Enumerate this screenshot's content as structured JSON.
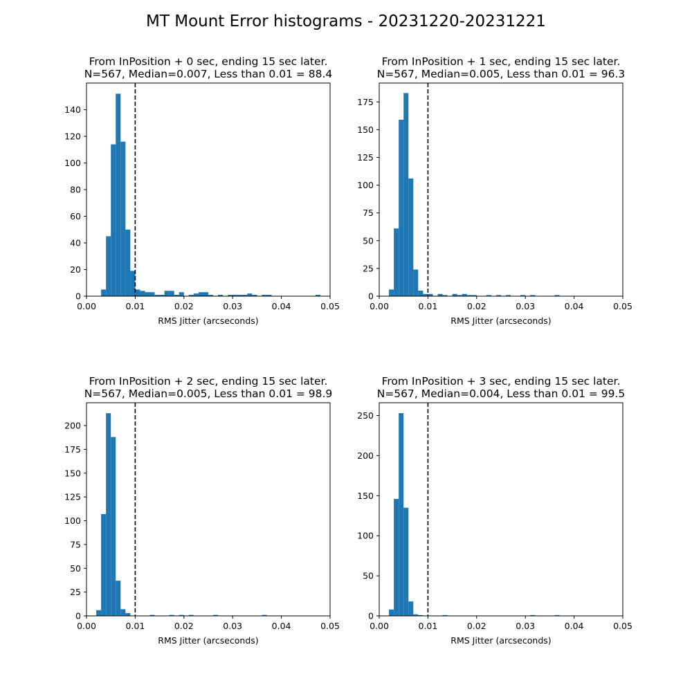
{
  "figure": {
    "suptitle": "MT Mount Error histograms - 20231220-20231221",
    "bar_color": "#1f77b4",
    "threshold_line_color": "#000000"
  },
  "chart_data": [
    {
      "type": "bar",
      "title_line1": "From InPosition + 0 sec, ending 15 sec later.",
      "title_line2": "N=567, Median=0.007, Less than 0.01 = 88.4",
      "xlabel": "RMS Jitter (arcseconds)",
      "ylabel": "",
      "xlim": [
        0.0,
        0.05
      ],
      "ylim": [
        0,
        160
      ],
      "xticks": [
        "0.00",
        "0.01",
        "0.02",
        "0.03",
        "0.04",
        "0.05"
      ],
      "yticks": [
        "0",
        "20",
        "40",
        "60",
        "80",
        "100",
        "120",
        "140"
      ],
      "threshold": 0.01,
      "bin_width": 0.001,
      "bins": [
        {
          "x": 0.003,
          "y": 5
        },
        {
          "x": 0.004,
          "y": 45
        },
        {
          "x": 0.005,
          "y": 114
        },
        {
          "x": 0.006,
          "y": 152
        },
        {
          "x": 0.007,
          "y": 116
        },
        {
          "x": 0.008,
          "y": 50
        },
        {
          "x": 0.009,
          "y": 19
        },
        {
          "x": 0.01,
          "y": 5
        },
        {
          "x": 0.011,
          "y": 4
        },
        {
          "x": 0.012,
          "y": 3
        },
        {
          "x": 0.013,
          "y": 3
        },
        {
          "x": 0.014,
          "y": 1
        },
        {
          "x": 0.015,
          "y": 1
        },
        {
          "x": 0.016,
          "y": 4
        },
        {
          "x": 0.017,
          "y": 4
        },
        {
          "x": 0.018,
          "y": 1
        },
        {
          "x": 0.019,
          "y": 3
        },
        {
          "x": 0.021,
          "y": 1
        },
        {
          "x": 0.022,
          "y": 2
        },
        {
          "x": 0.023,
          "y": 3
        },
        {
          "x": 0.024,
          "y": 3
        },
        {
          "x": 0.025,
          "y": 1
        },
        {
          "x": 0.027,
          "y": 1
        },
        {
          "x": 0.029,
          "y": 1
        },
        {
          "x": 0.03,
          "y": 1
        },
        {
          "x": 0.031,
          "y": 1
        },
        {
          "x": 0.032,
          "y": 1
        },
        {
          "x": 0.033,
          "y": 2
        },
        {
          "x": 0.034,
          "y": 1
        },
        {
          "x": 0.036,
          "y": 1
        },
        {
          "x": 0.037,
          "y": 1
        },
        {
          "x": 0.047,
          "y": 1
        }
      ]
    },
    {
      "type": "bar",
      "title_line1": "From InPosition + 1 sec, ending 15 sec later.",
      "title_line2": "N=567, Median=0.005, Less than 0.01 = 96.3",
      "xlabel": "RMS Jitter (arcseconds)",
      "ylabel": "",
      "xlim": [
        0.0,
        0.05
      ],
      "ylim": [
        0,
        192
      ],
      "xticks": [
        "0.00",
        "0.01",
        "0.02",
        "0.03",
        "0.04",
        "0.05"
      ],
      "yticks": [
        "0",
        "25",
        "50",
        "75",
        "100",
        "125",
        "150",
        "175"
      ],
      "threshold": 0.01,
      "bin_width": 0.001,
      "bins": [
        {
          "x": 0.002,
          "y": 6
        },
        {
          "x": 0.003,
          "y": 61
        },
        {
          "x": 0.004,
          "y": 159
        },
        {
          "x": 0.005,
          "y": 183
        },
        {
          "x": 0.006,
          "y": 106
        },
        {
          "x": 0.007,
          "y": 24
        },
        {
          "x": 0.008,
          "y": 5
        },
        {
          "x": 0.009,
          "y": 2
        },
        {
          "x": 0.01,
          "y": 2
        },
        {
          "x": 0.012,
          "y": 2
        },
        {
          "x": 0.013,
          "y": 1
        },
        {
          "x": 0.015,
          "y": 2
        },
        {
          "x": 0.016,
          "y": 1
        },
        {
          "x": 0.017,
          "y": 2
        },
        {
          "x": 0.018,
          "y": 1
        },
        {
          "x": 0.019,
          "y": 1
        },
        {
          "x": 0.022,
          "y": 1
        },
        {
          "x": 0.024,
          "y": 1
        },
        {
          "x": 0.026,
          "y": 1
        },
        {
          "x": 0.029,
          "y": 1
        },
        {
          "x": 0.031,
          "y": 1
        },
        {
          "x": 0.036,
          "y": 1
        }
      ]
    },
    {
      "type": "bar",
      "title_line1": "From InPosition + 2 sec, ending 15 sec later.",
      "title_line2": "N=567, Median=0.005, Less than 0.01 = 98.9",
      "xlabel": "RMS Jitter (arcseconds)",
      "ylabel": "",
      "xlim": [
        0.0,
        0.05
      ],
      "ylim": [
        0,
        224
      ],
      "xticks": [
        "0.00",
        "0.01",
        "0.02",
        "0.03",
        "0.04",
        "0.05"
      ],
      "yticks": [
        "0",
        "25",
        "50",
        "75",
        "100",
        "125",
        "150",
        "175",
        "200"
      ],
      "threshold": 0.01,
      "bin_width": 0.001,
      "bins": [
        {
          "x": 0.002,
          "y": 6
        },
        {
          "x": 0.003,
          "y": 107
        },
        {
          "x": 0.004,
          "y": 213
        },
        {
          "x": 0.005,
          "y": 188
        },
        {
          "x": 0.006,
          "y": 37
        },
        {
          "x": 0.007,
          "y": 7
        },
        {
          "x": 0.008,
          "y": 3
        },
        {
          "x": 0.013,
          "y": 1
        },
        {
          "x": 0.017,
          "y": 1
        },
        {
          "x": 0.019,
          "y": 1
        },
        {
          "x": 0.021,
          "y": 1
        },
        {
          "x": 0.026,
          "y": 1
        },
        {
          "x": 0.036,
          "y": 1
        }
      ]
    },
    {
      "type": "bar",
      "title_line1": "From InPosition + 3 sec, ending 15 sec later.",
      "title_line2": "N=567, Median=0.004, Less than 0.01 = 99.5",
      "xlabel": "RMS Jitter (arcseconds)",
      "ylabel": "",
      "xlim": [
        0.0,
        0.05
      ],
      "ylim": [
        0,
        266
      ],
      "xticks": [
        "0.00",
        "0.01",
        "0.02",
        "0.03",
        "0.04",
        "0.05"
      ],
      "yticks": [
        "0",
        "50",
        "100",
        "150",
        "200",
        "250"
      ],
      "threshold": 0.01,
      "bin_width": 0.001,
      "bins": [
        {
          "x": 0.002,
          "y": 8
        },
        {
          "x": 0.003,
          "y": 146
        },
        {
          "x": 0.004,
          "y": 253
        },
        {
          "x": 0.005,
          "y": 135
        },
        {
          "x": 0.006,
          "y": 18
        },
        {
          "x": 0.007,
          "y": 2
        },
        {
          "x": 0.008,
          "y": 1
        },
        {
          "x": 0.013,
          "y": 1
        },
        {
          "x": 0.031,
          "y": 1
        },
        {
          "x": 0.036,
          "y": 1
        }
      ]
    }
  ]
}
